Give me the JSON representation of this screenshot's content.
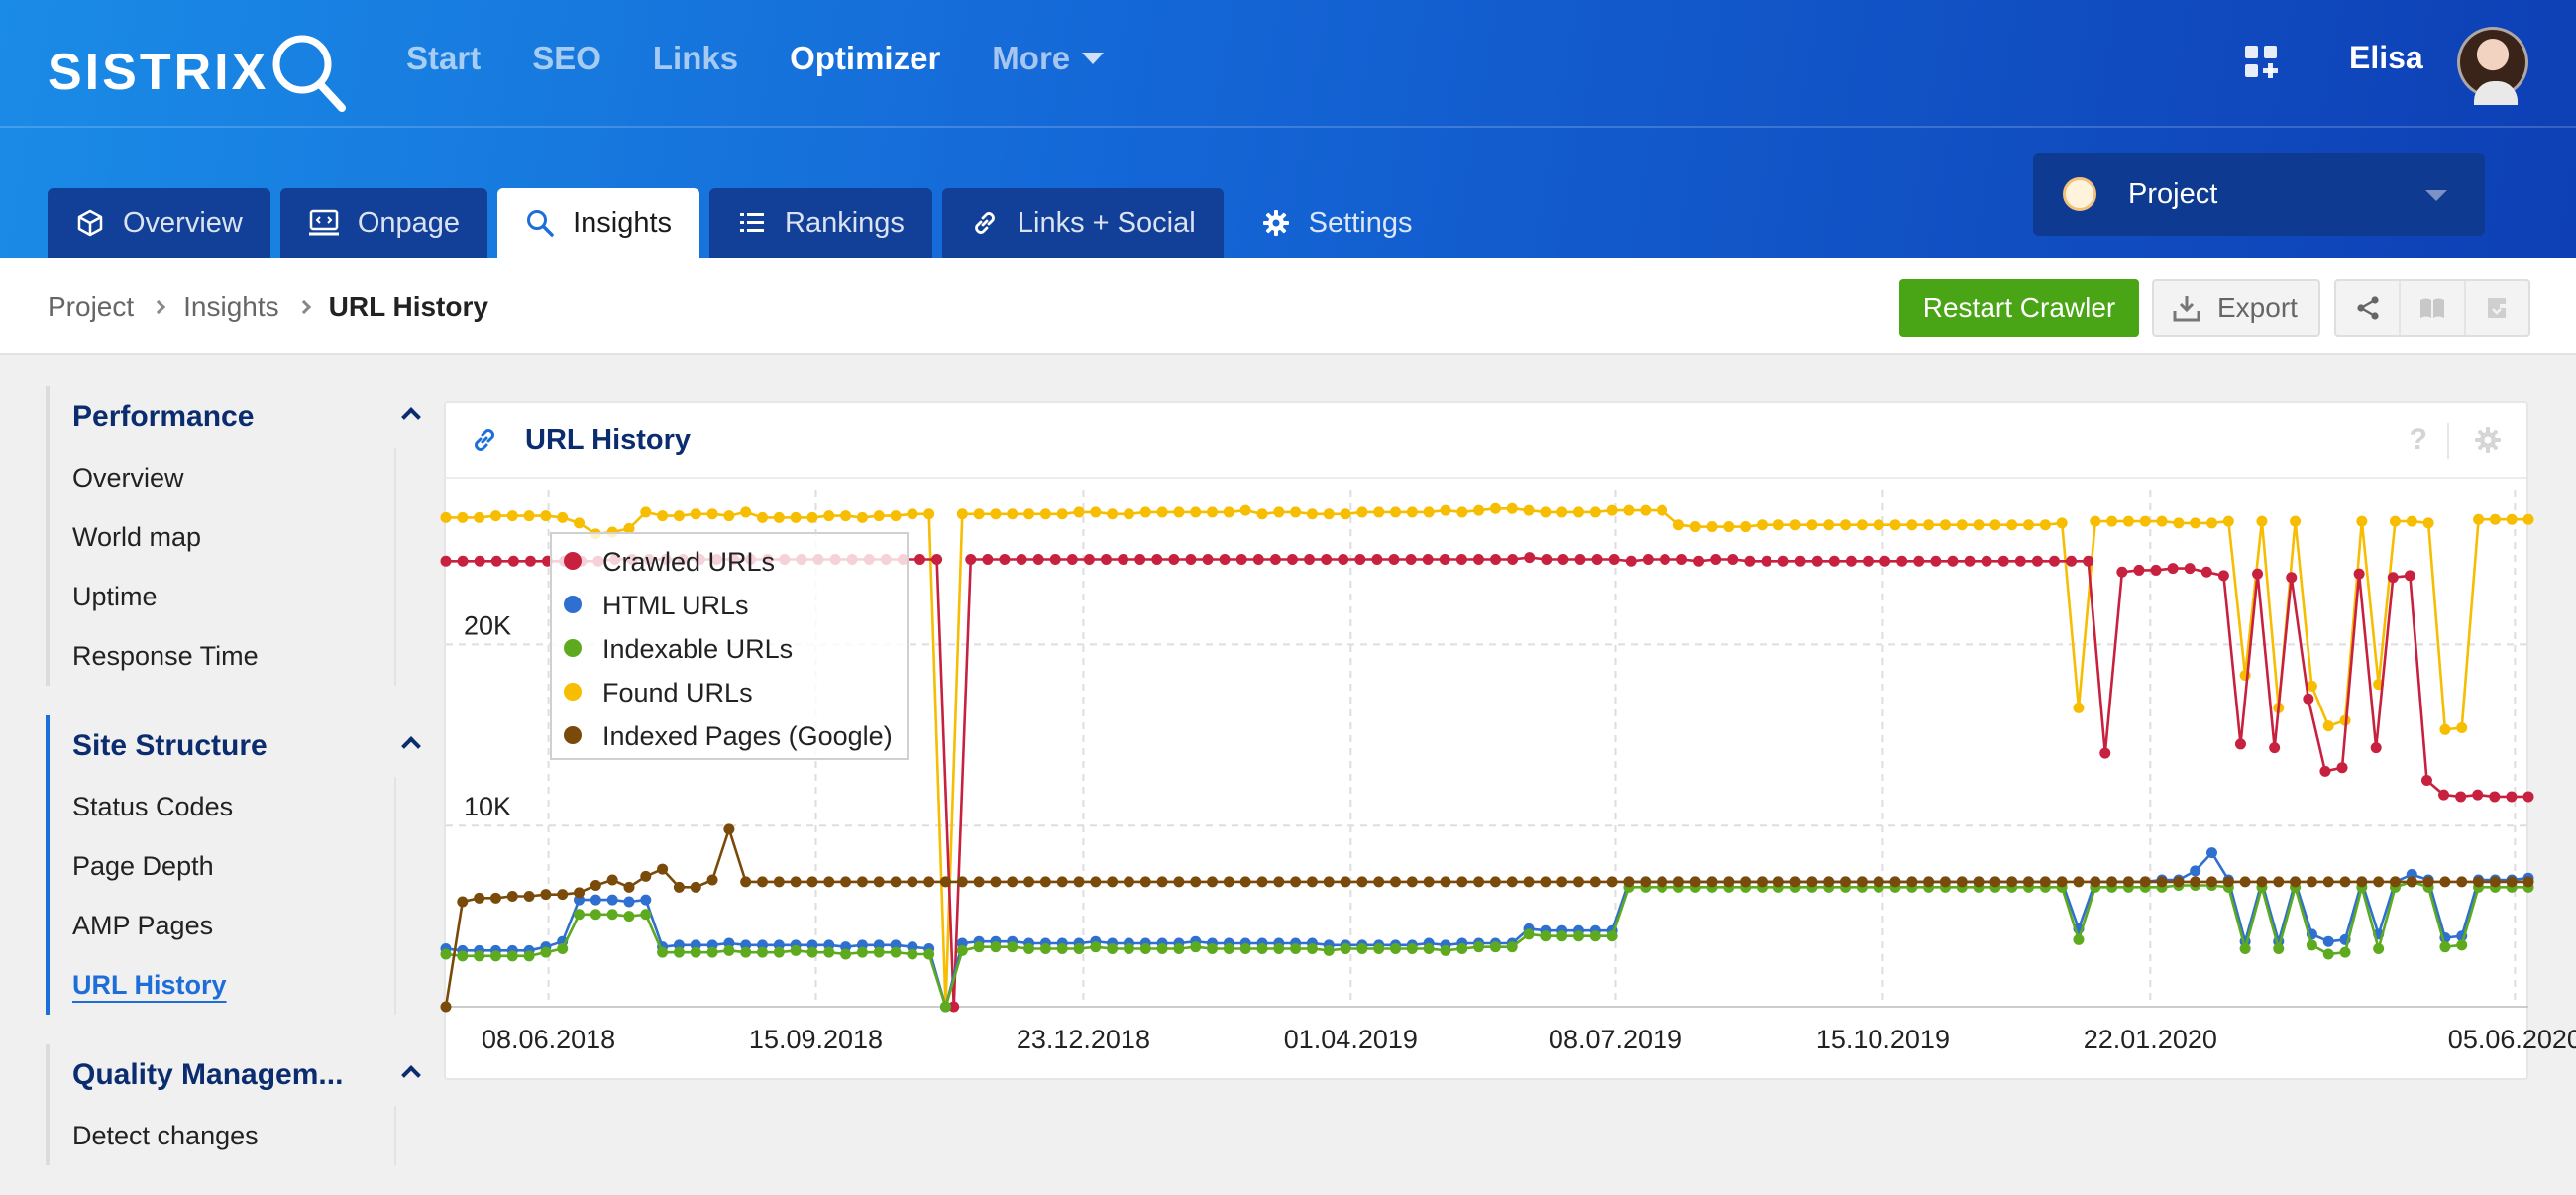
{
  "brand": {
    "name": "SISTRIX"
  },
  "topnav": {
    "items": [
      {
        "label": "Start",
        "active": false
      },
      {
        "label": "SEO",
        "active": false
      },
      {
        "label": "Links",
        "active": false
      },
      {
        "label": "Optimizer",
        "active": true
      },
      {
        "label": "More",
        "active": false
      }
    ]
  },
  "user": {
    "name": "Elisa"
  },
  "project_select": {
    "label": "Project"
  },
  "tabs": [
    {
      "label": "Overview"
    },
    {
      "label": "Onpage"
    },
    {
      "label": "Insights"
    },
    {
      "label": "Rankings"
    },
    {
      "label": "Links + Social"
    },
    {
      "label": "Settings"
    }
  ],
  "breadcrumb": {
    "items": [
      "Project",
      "Insights",
      "URL History"
    ]
  },
  "actions": {
    "restart": "Restart Crawler",
    "export": "Export"
  },
  "sidebar": {
    "groups": [
      {
        "heading": "Performance",
        "items": [
          "Overview",
          "World map",
          "Uptime",
          "Response Time"
        ]
      },
      {
        "heading": "Site Structure",
        "items": [
          "Status Codes",
          "Page Depth",
          "AMP Pages",
          "URL History"
        ],
        "current": "URL History"
      },
      {
        "heading": "Quality Managem...",
        "items": [
          "Detect changes"
        ]
      }
    ]
  },
  "panel": {
    "title": "URL History",
    "help": "?"
  },
  "colors": {
    "crawled": "#c8203f",
    "html": "#2e6fd0",
    "indexable": "#5eaa1e",
    "found": "#f7bd00",
    "indexed": "#7a4a0a",
    "accent": "#1d6ed8",
    "green": "#49a515"
  },
  "chart_data": {
    "type": "line",
    "title": "URL History",
    "ylim": [
      0,
      28500
    ],
    "yticks": [
      {
        "value": 10000,
        "label": "10K"
      },
      {
        "value": 20000,
        "label": "20K"
      }
    ],
    "x_start": "2018-05-01",
    "x_end": "2020-06-10",
    "xticks": [
      {
        "date": "2018-06-08",
        "label": "08.06.2018"
      },
      {
        "date": "2018-09-15",
        "label": "15.09.2018"
      },
      {
        "date": "2018-12-23",
        "label": "23.12.2018"
      },
      {
        "date": "2019-04-01",
        "label": "01.04.2019"
      },
      {
        "date": "2019-07-08",
        "label": "08.07.2019"
      },
      {
        "date": "2019-10-15",
        "label": "15.10.2019"
      },
      {
        "date": "2020-01-22",
        "label": "22.01.2020"
      },
      {
        "date": "2020-06-05",
        "label": "05.06.2020"
      }
    ],
    "legend_position": "top-left",
    "series": [
      {
        "name": "Crawled URLs",
        "key": "crawled",
        "values": [
          24600,
          24600,
          24600,
          24600,
          24600,
          24600,
          24600,
          24600,
          24600,
          24600,
          24700,
          24700,
          24700,
          24700,
          24700,
          24700,
          24700,
          24700,
          24700,
          24700,
          24700,
          24700,
          24700,
          24700,
          24700,
          24700,
          24700,
          24700,
          24700,
          24700,
          0,
          24700,
          24700,
          24700,
          24700,
          24700,
          24700,
          24700,
          24700,
          24700,
          24700,
          24700,
          24700,
          24700,
          24700,
          24700,
          24700,
          24700,
          24700,
          24700,
          24700,
          24700,
          24700,
          24700,
          24700,
          24700,
          24700,
          24700,
          24700,
          24700,
          24700,
          24700,
          24700,
          24700,
          24800,
          24700,
          24700,
          24700,
          24700,
          24700,
          24600,
          24700,
          24700,
          24700,
          24600,
          24700,
          24700,
          24600,
          24600,
          24600,
          24600,
          24600,
          24600,
          24600,
          24600,
          24600,
          24600,
          24600,
          24600,
          24600,
          24600,
          24600,
          24600,
          24600,
          24600,
          24600,
          24600,
          24600,
          14000,
          24000,
          24100,
          24100,
          24200,
          24200,
          24000,
          23800,
          14500,
          23900,
          14300,
          23700,
          17000,
          13000,
          13200,
          23900,
          14300,
          23700,
          23800,
          12500,
          11700,
          11600,
          11700,
          11600,
          11600,
          11600
        ]
      },
      {
        "name": "HTML URLs",
        "key": "html",
        "values": [
          3200,
          3100,
          3100,
          3100,
          3100,
          3100,
          3300,
          3600,
          5900,
          5900,
          5900,
          5800,
          5900,
          3300,
          3400,
          3400,
          3400,
          3500,
          3400,
          3400,
          3400,
          3400,
          3400,
          3400,
          3300,
          3400,
          3400,
          3400,
          3300,
          3200,
          0,
          3500,
          3600,
          3600,
          3600,
          3500,
          3500,
          3500,
          3500,
          3600,
          3500,
          3500,
          3500,
          3500,
          3500,
          3600,
          3500,
          3500,
          3500,
          3500,
          3500,
          3500,
          3500,
          3400,
          3400,
          3400,
          3400,
          3400,
          3400,
          3500,
          3400,
          3500,
          3500,
          3500,
          3500,
          4300,
          4200,
          4200,
          4200,
          4200,
          4200,
          6900,
          6900,
          6900,
          6900,
          6900,
          6900,
          6900,
          6900,
          6900,
          6900,
          6900,
          6900,
          6900,
          6900,
          6900,
          6900,
          6900,
          6900,
          6900,
          6900,
          6900,
          6900,
          6900,
          6900,
          6900,
          6900,
          6900,
          4300,
          6900,
          6900,
          6900,
          6900,
          7000,
          7000,
          7500,
          8500,
          7000,
          3600,
          6900,
          3600,
          6900,
          4000,
          3600,
          3700,
          6900,
          4000,
          6900,
          7300,
          7000,
          3800,
          3900,
          7000,
          7000,
          7000,
          7100
        ]
      },
      {
        "name": "Indexable URLs",
        "key": "indexable",
        "values": [
          2900,
          2800,
          2800,
          2800,
          2800,
          2800,
          3000,
          3200,
          5100,
          5100,
          5100,
          5000,
          5100,
          3000,
          3000,
          3000,
          3000,
          3100,
          3000,
          3000,
          3000,
          3100,
          3000,
          3000,
          2900,
          3000,
          3000,
          3000,
          2900,
          2900,
          0,
          3100,
          3300,
          3300,
          3300,
          3200,
          3200,
          3200,
          3200,
          3300,
          3200,
          3200,
          3200,
          3200,
          3200,
          3300,
          3200,
          3200,
          3200,
          3200,
          3200,
          3200,
          3200,
          3100,
          3200,
          3200,
          3200,
          3200,
          3200,
          3200,
          3100,
          3200,
          3300,
          3300,
          3300,
          4000,
          3900,
          3900,
          3900,
          3900,
          3900,
          6600,
          6600,
          6600,
          6600,
          6600,
          6600,
          6600,
          6600,
          6600,
          6600,
          6600,
          6600,
          6600,
          6600,
          6600,
          6600,
          6600,
          6600,
          6600,
          6600,
          6600,
          6600,
          6600,
          6600,
          6600,
          6600,
          6600,
          3700,
          6600,
          6600,
          6600,
          6600,
          6600,
          6700,
          6700,
          6700,
          6600,
          3200,
          6600,
          3200,
          6600,
          3400,
          2900,
          3000,
          6600,
          3200,
          6600,
          6900,
          6600,
          3300,
          3400,
          6600,
          6600,
          6600,
          6600
        ]
      },
      {
        "name": "Found URLs",
        "key": "found",
        "values": [
          27000,
          27000,
          27000,
          27100,
          27100,
          27100,
          27100,
          27000,
          26700,
          26100,
          26200,
          26400,
          27300,
          27100,
          27100,
          27200,
          27200,
          27100,
          27300,
          27000,
          27000,
          27000,
          27000,
          27100,
          27100,
          27000,
          27100,
          27100,
          27200,
          27200,
          0,
          27200,
          27200,
          27200,
          27200,
          27200,
          27200,
          27200,
          27300,
          27300,
          27200,
          27200,
          27300,
          27300,
          27300,
          27300,
          27300,
          27300,
          27400,
          27200,
          27300,
          27300,
          27200,
          27200,
          27200,
          27300,
          27300,
          27300,
          27300,
          27300,
          27400,
          27300,
          27400,
          27500,
          27500,
          27400,
          27300,
          27300,
          27300,
          27300,
          27400,
          27400,
          27400,
          27400,
          26600,
          26500,
          26500,
          26500,
          26500,
          26600,
          26600,
          26600,
          26600,
          26600,
          26600,
          26600,
          26600,
          26600,
          26600,
          26600,
          26600,
          26600,
          26600,
          26600,
          26600,
          26600,
          26600,
          26700,
          16500,
          26800,
          26800,
          26800,
          26800,
          26800,
          26700,
          26700,
          26700,
          26800,
          18300,
          26800,
          16500,
          26800,
          17700,
          15500,
          15800,
          26800,
          17800,
          26800,
          26800,
          26700,
          15300,
          15400,
          26900,
          26900,
          26900,
          26900
        ]
      },
      {
        "name": "Indexed Pages (Google)",
        "key": "indexed",
        "values": [
          0,
          5800,
          6000,
          6000,
          6100,
          6100,
          6200,
          6200,
          6300,
          6700,
          7000,
          6600,
          7200,
          7600,
          6600,
          6600,
          7000,
          9800,
          6900,
          6900,
          6900,
          6900,
          6900,
          6900,
          6900,
          6900,
          6900,
          6900,
          6900,
          6900,
          6900,
          6900,
          6900,
          6900,
          6900,
          6900,
          6900,
          6900,
          6900,
          6900,
          6900,
          6900,
          6900,
          6900,
          6900,
          6900,
          6900,
          6900,
          6900,
          6900,
          6900,
          6900,
          6900,
          6900,
          6900,
          6900,
          6900,
          6900,
          6900,
          6900,
          6900,
          6900,
          6900,
          6900,
          6900,
          6900,
          6900,
          6900,
          6900,
          6900,
          6900,
          6900,
          6900,
          6900,
          6900,
          6900,
          6900,
          6900,
          6900,
          6900,
          6900,
          6900,
          6900,
          6900,
          6900,
          6900,
          6900,
          6900,
          6900,
          6900,
          6900,
          6900,
          6900,
          6900,
          6900,
          6900,
          6900,
          6900,
          6900,
          6900,
          6900,
          6900,
          6900,
          6900,
          6900,
          6900,
          6900,
          6900,
          6900,
          6900,
          6900,
          6900,
          6900,
          6900,
          6900,
          6900,
          6900,
          6900,
          6900,
          6900,
          6900,
          6900,
          6900,
          6900,
          6900,
          6900
        ]
      }
    ]
  }
}
